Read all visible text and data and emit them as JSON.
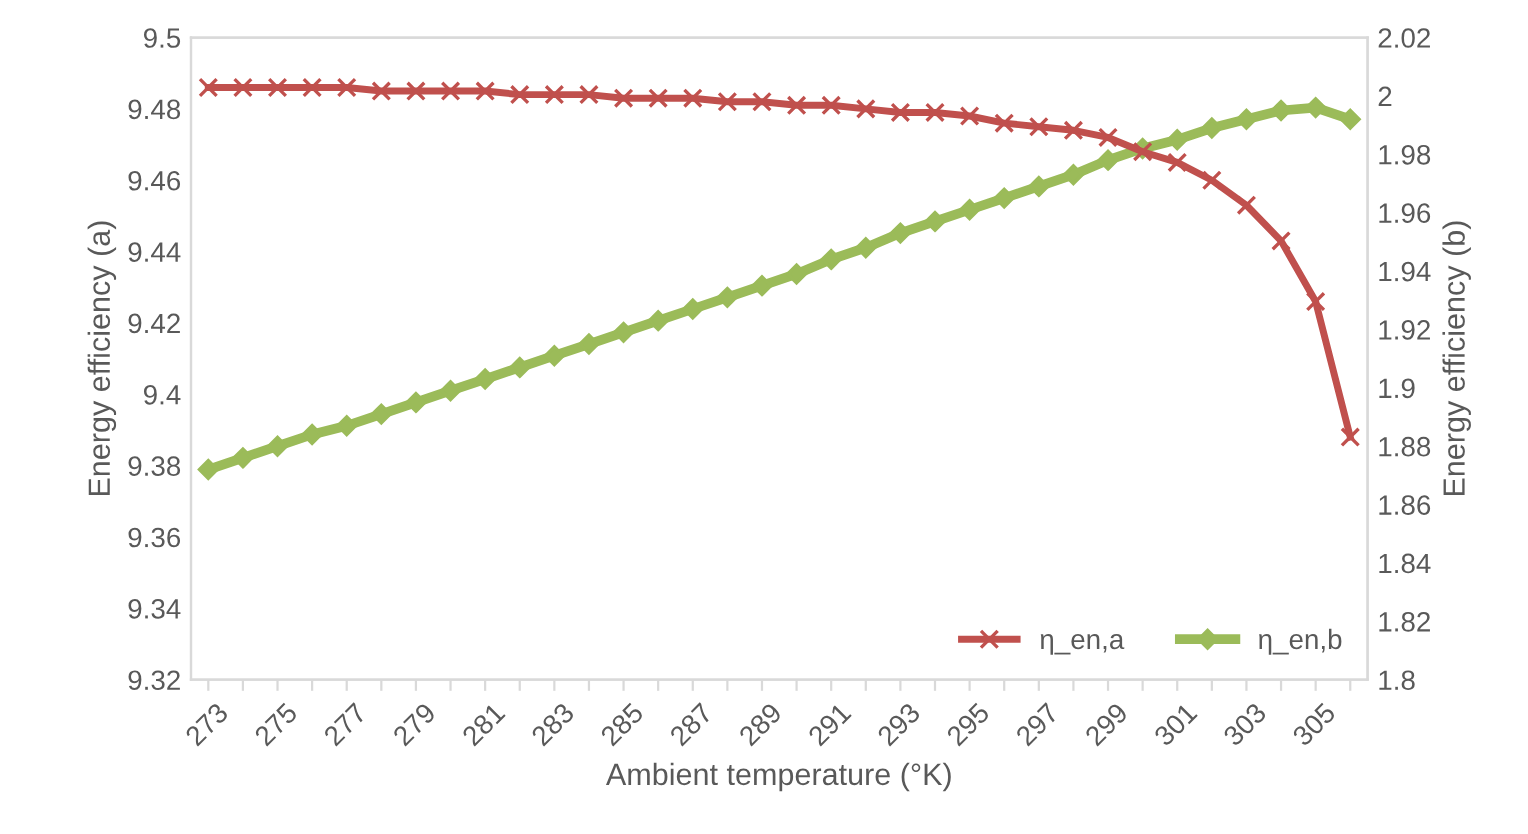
{
  "chart_data": {
    "type": "line",
    "xlabel": "Ambient temperature (°K)",
    "ylabel": "Energy efficiency (a)",
    "y2label": "Energy efficiency (b)",
    "categories": [
      "273",
      null,
      "275",
      null,
      "277",
      null,
      "279",
      null,
      "281",
      null,
      "283",
      null,
      "285",
      null,
      "287",
      null,
      "289",
      null,
      "291",
      null,
      "293",
      null,
      "295",
      null,
      "297",
      null,
      "299",
      null,
      "301",
      null,
      "303",
      null,
      "305",
      null
    ],
    "series": [
      {
        "name": "η_en,a",
        "color": "#c0504d",
        "marker": "cross",
        "values": [
          9.486,
          9.486,
          9.486,
          9.486,
          9.486,
          9.485,
          9.485,
          9.485,
          9.485,
          9.484,
          9.484,
          9.484,
          9.483,
          9.483,
          9.483,
          9.482,
          9.482,
          9.481,
          9.481,
          9.48,
          9.479,
          9.479,
          9.478,
          9.476,
          9.475,
          9.474,
          9.472,
          9.468,
          9.465,
          9.46,
          9.453,
          9.443,
          9.426,
          9.388
        ]
      },
      {
        "name": "η_en,b",
        "color": "#9bbb59",
        "marker": "diamond",
        "axis": "y2",
        "values": [
          1.872,
          1.876,
          1.88,
          1.884,
          1.887,
          1.891,
          1.895,
          1.899,
          1.903,
          1.907,
          1.911,
          1.915,
          1.919,
          1.923,
          1.927,
          1.931,
          1.935,
          1.939,
          1.944,
          1.948,
          1.953,
          1.957,
          1.961,
          1.965,
          1.969,
          1.973,
          1.978,
          1.982,
          1.985,
          1.989,
          1.992,
          1.995,
          1.996,
          1.992
        ]
      }
    ],
    "ylim": [
      9.32,
      9.5
    ],
    "yticks": [
      9.32,
      9.34,
      9.36,
      9.38,
      9.4,
      9.42,
      9.44,
      9.46,
      9.48,
      9.5
    ],
    "y2lim": [
      1.8,
      2.02
    ],
    "y2ticks": [
      1.8,
      1.82,
      1.84,
      1.86,
      1.88,
      1.9,
      1.92,
      1.94,
      1.96,
      1.98,
      2,
      2.02
    ],
    "grid": false,
    "legend": "bottom right",
    "line_style": "solid"
  }
}
